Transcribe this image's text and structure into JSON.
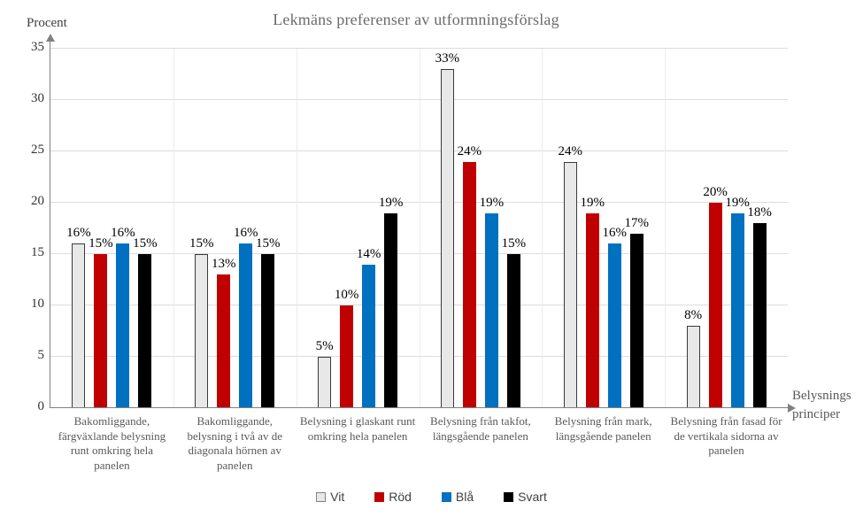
{
  "title": "Lekmäns preferenser av utformningsförslag",
  "y_axis_label": "Procent",
  "x_axis_label": {
    "line1": "Belysnings",
    "line2": "principer"
  },
  "chart_data": {
    "type": "bar",
    "title": "Lekmäns preferenser av utformningsförslag",
    "ylabel": "Procent",
    "xlabel": "Belysnings principer",
    "ylim": [
      0,
      35
    ],
    "ytick_step": 5,
    "grid": true,
    "legend_position": "bottom",
    "value_suffix": "%",
    "categories": [
      "Bakomliggande, färgväxlande belysning runt omkring hela panelen",
      "Bakomliggande, belysning i två av de diagonala hörnen av panelen",
      "Belysning i glaskant runt omkring hela panelen",
      "Belysning från takfot, längsgående panelen",
      "Belysning från mark, längsgående panelen",
      "Belysning från fasad för de vertikala sidorna av panelen"
    ],
    "series": [
      {
        "name": "Vit",
        "color": "#e8e8e8",
        "border_color": "#3a3a3a",
        "values": [
          16,
          15,
          5,
          33,
          24,
          8
        ]
      },
      {
        "name": "Röd",
        "color": "#c00000",
        "border_color": "#c00000",
        "values": [
          15,
          13,
          10,
          24,
          19,
          20
        ]
      },
      {
        "name": "Blå",
        "color": "#0070c0",
        "border_color": "#0070c0",
        "values": [
          16,
          16,
          14,
          19,
          16,
          19
        ]
      },
      {
        "name": "Svart",
        "color": "#000000",
        "border_color": "#000000",
        "values": [
          15,
          15,
          19,
          15,
          17,
          18
        ]
      }
    ],
    "axis_color": "#808080",
    "grid_color": "#dcdcdc"
  }
}
